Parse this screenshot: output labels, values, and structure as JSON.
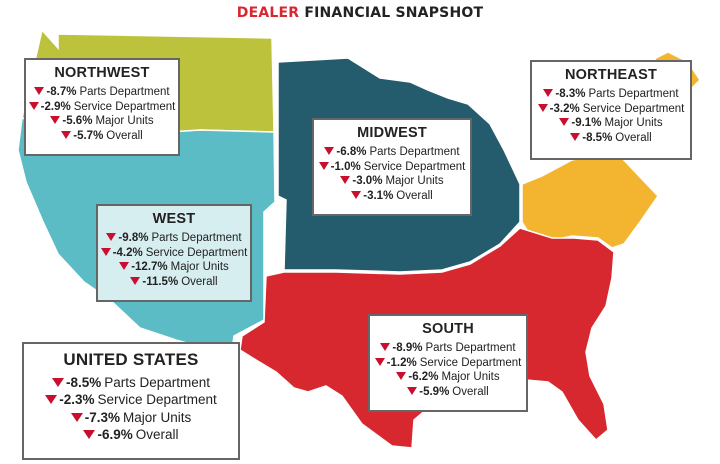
{
  "title": {
    "accent": "DEALER",
    "rest": "FINANCIAL SNAPSHOT"
  },
  "colors": {
    "northwest": "#bcc23b",
    "west": "#5cbcc6",
    "midwest": "#255c6d",
    "northeast": "#f3b52f",
    "south": "#d7282f",
    "down_arrow": "#c8102e",
    "box_bg_west": "#d7eef0",
    "box_bg_northwest": "#ffffff",
    "box_bg_midwest": "#ffffff",
    "box_bg_northeast": "#ffffff",
    "box_bg_south": "#ffffff",
    "box_bg_us": "#ffffff"
  },
  "regions": {
    "northwest": {
      "name": "NORTHWEST",
      "rows": [
        {
          "value": "-8.7%",
          "label": "Parts Department"
        },
        {
          "value": "-2.9%",
          "label": "Service Department"
        },
        {
          "value": "-5.6%",
          "label": "Major Units"
        },
        {
          "value": "-5.7%",
          "label": "Overall"
        }
      ]
    },
    "midwest": {
      "name": "MIDWEST",
      "rows": [
        {
          "value": "-6.8%",
          "label": "Parts Department"
        },
        {
          "value": "-1.0%",
          "label": "Service Department"
        },
        {
          "value": "-3.0%",
          "label": "Major Units"
        },
        {
          "value": "-3.1%",
          "label": "Overall"
        }
      ]
    },
    "northeast": {
      "name": "NORTHEAST",
      "rows": [
        {
          "value": "-8.3%",
          "label": "Parts Department"
        },
        {
          "value": "-3.2%",
          "label": "Service Department"
        },
        {
          "value": "-9.1%",
          "label": "Major Units"
        },
        {
          "value": "-8.5%",
          "label": "Overall"
        }
      ]
    },
    "west": {
      "name": "WEST",
      "rows": [
        {
          "value": "-9.8%",
          "label": "Parts Department"
        },
        {
          "value": "-4.2%",
          "label": "Service Department"
        },
        {
          "value": "-12.7%",
          "label": "Major Units"
        },
        {
          "value": "-11.5%",
          "label": "Overall"
        }
      ]
    },
    "south": {
      "name": "SOUTH",
      "rows": [
        {
          "value": "-8.9%",
          "label": "Parts Department"
        },
        {
          "value": "-1.2%",
          "label": "Service Department"
        },
        {
          "value": "-6.2%",
          "label": "Major Units"
        },
        {
          "value": "-5.9%",
          "label": "Overall"
        }
      ]
    },
    "us": {
      "name": "UNITED STATES",
      "rows": [
        {
          "value": "-8.5%",
          "label": "Parts Department"
        },
        {
          "value": "-2.3%",
          "label": "Service Department"
        },
        {
          "value": "-7.3%",
          "label": "Major Units"
        },
        {
          "value": "-6.9%",
          "label": "Overall"
        }
      ]
    }
  }
}
